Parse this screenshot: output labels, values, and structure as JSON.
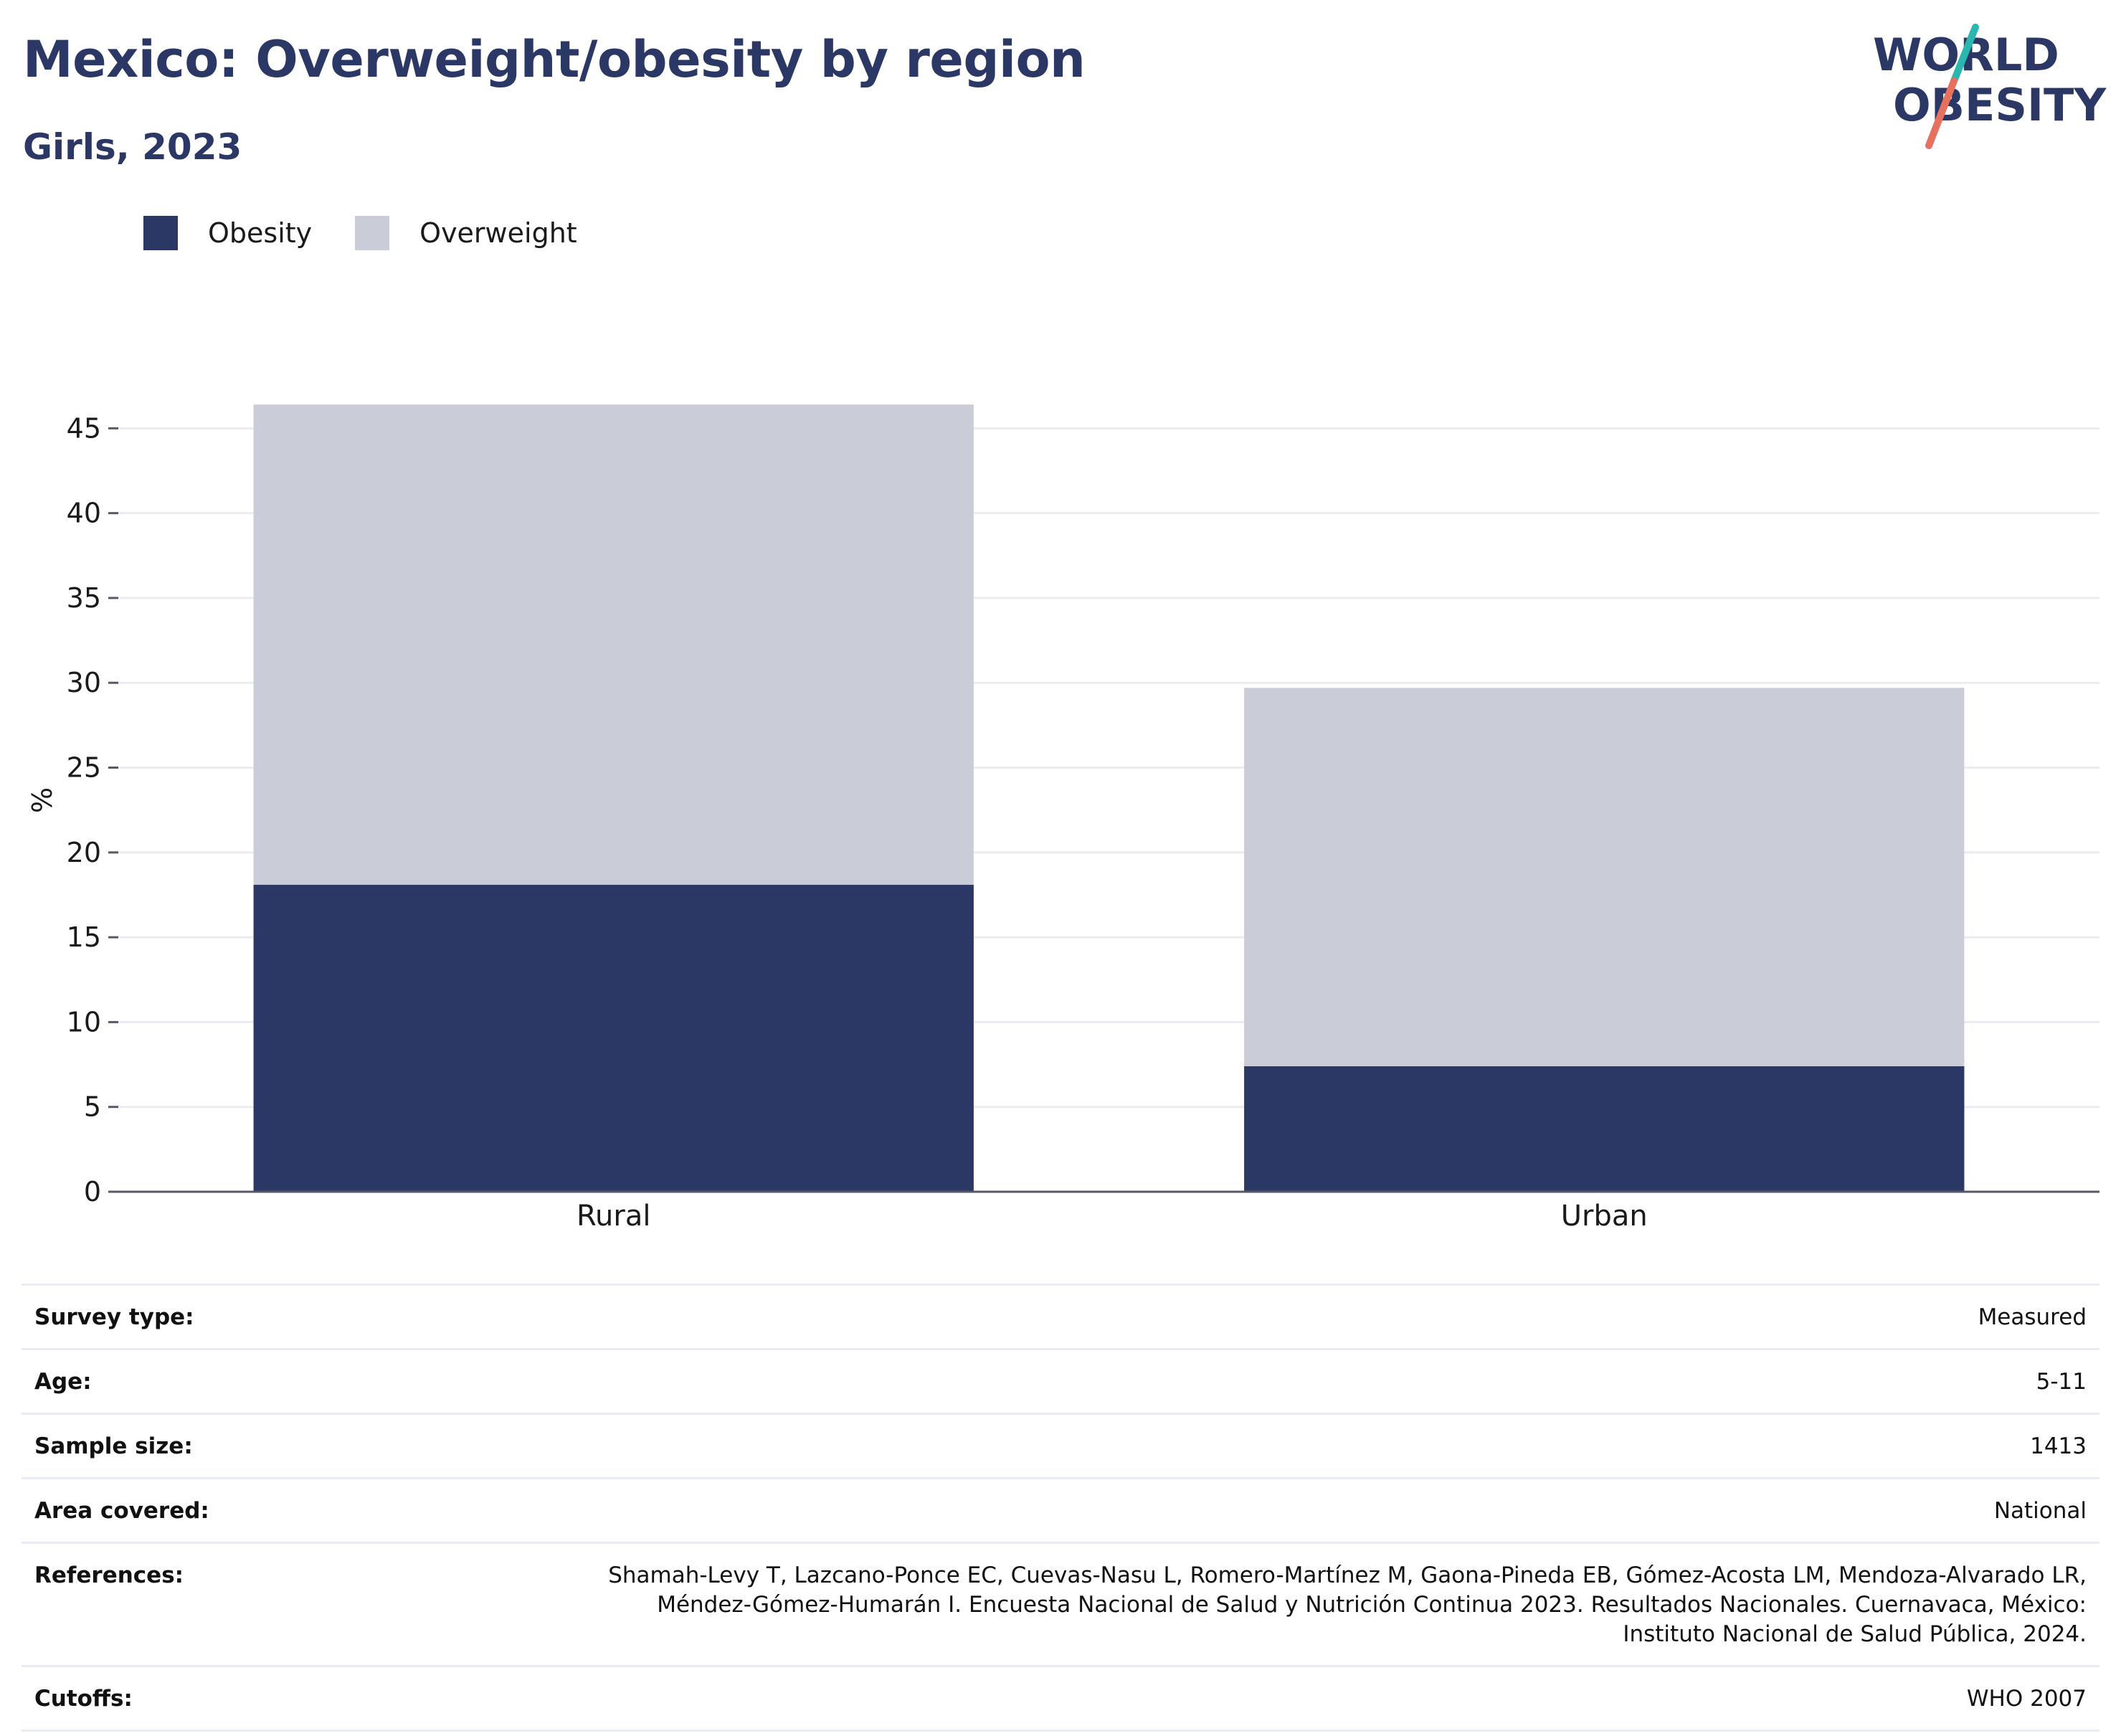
{
  "header": {
    "title": "Mexico: Overweight/obesity by region",
    "subtitle": "Girls, 2023"
  },
  "logo": {
    "line1": "WORLD",
    "line2": "OBESITY",
    "colors": {
      "text": "#2b3765",
      "teal": "#2bb6b0",
      "coral": "#e8705f"
    }
  },
  "colors": {
    "obesity": "#2b3765",
    "overweight": "#cacdd8",
    "grid": "#ececf0",
    "axis": "#555a66",
    "text_primary": "#2b3765"
  },
  "legend": {
    "obesity_label": "Obesity",
    "overweight_label": "Overweight"
  },
  "chart_data": {
    "type": "bar",
    "stacked": true,
    "categories": [
      "Rural",
      "Urban"
    ],
    "series": [
      {
        "name": "Obesity",
        "values": [
          18.1,
          7.4
        ]
      },
      {
        "name": "Overweight",
        "values": [
          28.3,
          22.3
        ]
      }
    ],
    "totals": [
      46.4,
      29.7
    ],
    "ylabel": "%",
    "ylim": [
      0,
      47
    ],
    "yticks": [
      0,
      5,
      10,
      15,
      20,
      25,
      30,
      35,
      40,
      45
    ],
    "grid": true,
    "legend_position": "top-left"
  },
  "info_rows": [
    {
      "label": "Survey type:",
      "value": "Measured"
    },
    {
      "label": "Age:",
      "value": "5-11"
    },
    {
      "label": "Sample size:",
      "value": "1413"
    },
    {
      "label": "Area covered:",
      "value": "National"
    },
    {
      "label": "References:",
      "value_lines": [
        "Shamah-Levy T, Lazcano-Ponce EC, Cuevas-Nasu L, Romero-Martínez M, Gaona-Pineda EB, Gómez-Acosta LM, Mendoza-Alvarado LR,",
        "Méndez-Gómez-Humarán I. Encuesta Nacional de Salud y Nutrición Continua 2023. Resultados Nacionales. Cuernavaca, México:",
        "Instituto Nacional de Salud Pública, 2024."
      ]
    },
    {
      "label": "Cutoffs:",
      "value": "WHO 2007"
    }
  ]
}
